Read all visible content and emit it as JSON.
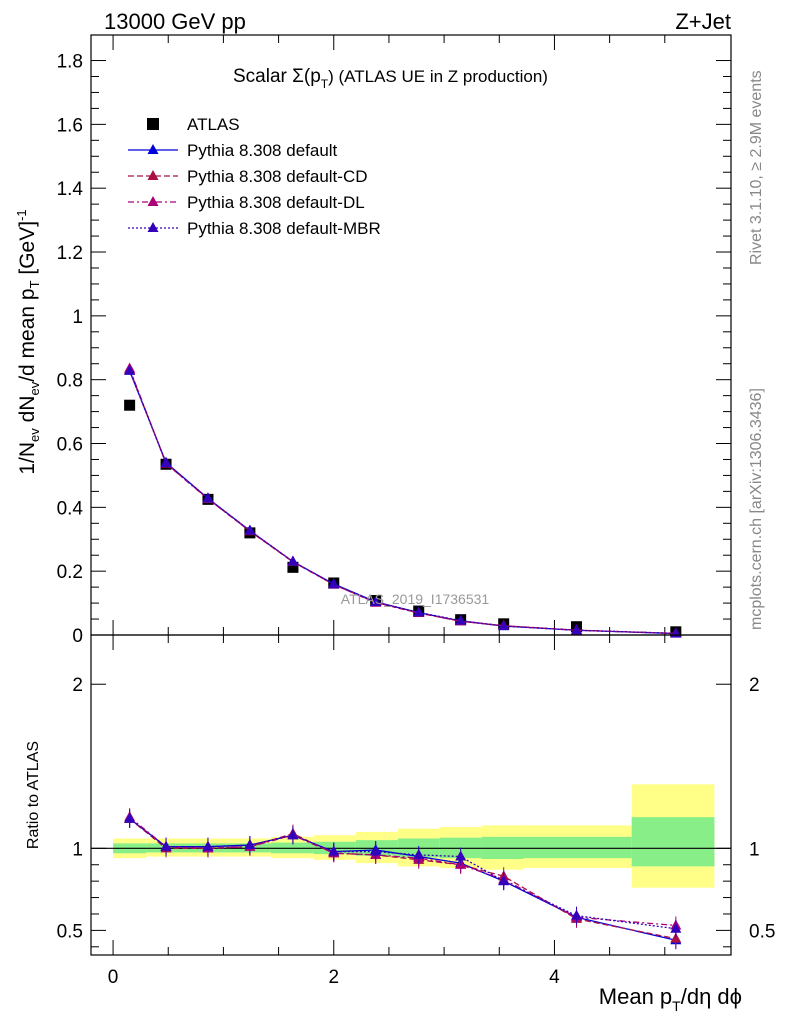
{
  "header": {
    "left": "13000 GeV pp",
    "right": "Z+Jet"
  },
  "plot_title": {
    "prefix": "Scalar Σ(p",
    "sub": "T",
    "suffix": ") (ATLAS UE in Z production)"
  },
  "side_text": {
    "rivet": "Rivet 3.1.10, ≥ 2.9M events",
    "mcplots": "mcplots.cern.ch [arXiv:1306.3436]"
  },
  "watermark": "ATLAS_2019_I1736531",
  "ylabel_main": {
    "a": "1/N",
    "a_sub": "ev",
    "b": " dN",
    "b_sub": "ev",
    "c": "/d mean p",
    "c_sub": "T",
    "d": " [GeV]",
    "d_sup": "-1"
  },
  "ylabel_ratio": "Ratio to ATLAS",
  "xlabel": {
    "a": "Mean p",
    "a_sub": "T",
    "b": "/dη dϕ"
  },
  "chart_data": [
    {
      "type": "scatter",
      "panel": "main",
      "ylim": [
        0,
        1.88
      ],
      "xlim": [
        -0.2,
        5.6
      ],
      "yticks": [
        "0",
        "0.2",
        "0.4",
        "0.6",
        "0.8",
        "1",
        "1.2",
        "1.4",
        "1.6",
        "1.8"
      ],
      "x": [
        0.15,
        0.48,
        0.86,
        1.24,
        1.63,
        2.0,
        2.38,
        2.77,
        3.15,
        3.54,
        4.2,
        5.1
      ],
      "series": [
        {
          "name": "ATLAS",
          "style": "marker-square",
          "color": "#000000",
          "values": [
            0.72,
            0.535,
            0.425,
            0.32,
            0.212,
            0.163,
            0.108,
            0.075,
            0.048,
            0.035,
            0.026,
            0.01
          ]
        },
        {
          "name": "Pythia 8.308 default",
          "style": "solid",
          "color": "#0000dd",
          "values": [
            0.828,
            0.54,
            0.428,
            0.327,
            0.23,
            0.16,
            0.104,
            0.07,
            0.044,
            0.028,
            0.015,
            0.0045
          ]
        },
        {
          "name": "Pythia 8.308 default-CD",
          "style": "dashed",
          "color": "#aa1144",
          "values": [
            0.832,
            0.538,
            0.427,
            0.325,
            0.229,
            0.158,
            0.102,
            0.069,
            0.043,
            0.029,
            0.015,
            0.005
          ]
        },
        {
          "name": "Pythia 8.308 default-DL",
          "style": "dashdot",
          "color": "#aa0077",
          "values": [
            0.835,
            0.537,
            0.426,
            0.326,
            0.23,
            0.158,
            0.101,
            0.069,
            0.043,
            0.029,
            0.015,
            0.005
          ]
        },
        {
          "name": "Pythia 8.308 default-MBR",
          "style": "dotted",
          "color": "#3300bb",
          "values": [
            0.828,
            0.539,
            0.428,
            0.327,
            0.23,
            0.159,
            0.103,
            0.071,
            0.045,
            0.028,
            0.015,
            0.005
          ]
        }
      ]
    },
    {
      "type": "line",
      "panel": "ratio",
      "ylim": [
        0.35,
        2.3
      ],
      "xlim": [
        -0.2,
        5.6
      ],
      "yticks": [
        "0.5",
        "1",
        "2"
      ],
      "xticks": [
        "0",
        "2",
        "4"
      ],
      "bins": [
        [
          0.0,
          0.3
        ],
        [
          0.3,
          0.67
        ],
        [
          0.67,
          1.05
        ],
        [
          1.05,
          1.43
        ],
        [
          1.43,
          1.82
        ],
        [
          1.82,
          2.2
        ],
        [
          2.2,
          2.58
        ],
        [
          2.58,
          2.96
        ],
        [
          2.96,
          3.34
        ],
        [
          3.34,
          3.72
        ],
        [
          3.72,
          4.7
        ],
        [
          4.7,
          5.45
        ]
      ],
      "band_yellow": [
        [
          0.94,
          1.06
        ],
        [
          0.95,
          1.06
        ],
        [
          0.95,
          1.06
        ],
        [
          0.95,
          1.06
        ],
        [
          0.94,
          1.07
        ],
        [
          0.93,
          1.08
        ],
        [
          0.91,
          1.1
        ],
        [
          0.89,
          1.12
        ],
        [
          0.88,
          1.13
        ],
        [
          0.87,
          1.14
        ],
        [
          0.88,
          1.14
        ],
        [
          0.76,
          1.39
        ]
      ],
      "band_green": [
        [
          0.97,
          1.03
        ],
        [
          0.975,
          1.03
        ],
        [
          0.975,
          1.03
        ],
        [
          0.975,
          1.03
        ],
        [
          0.97,
          1.035
        ],
        [
          0.965,
          1.04
        ],
        [
          0.955,
          1.05
        ],
        [
          0.945,
          1.06
        ],
        [
          0.94,
          1.065
        ],
        [
          0.935,
          1.07
        ],
        [
          0.94,
          1.07
        ],
        [
          0.89,
          1.19
        ]
      ],
      "x": [
        0.15,
        0.48,
        0.86,
        1.24,
        1.63,
        2.0,
        2.38,
        2.77,
        3.15,
        3.54,
        4.2,
        5.1
      ],
      "series": [
        {
          "name": "Pythia 8.308 default",
          "style": "solid",
          "color": "#0000dd",
          "values": [
            1.18,
            1.01,
            1.01,
            1.02,
            1.08,
            0.98,
            0.99,
            0.95,
            0.91,
            0.8,
            0.58,
            0.44
          ]
        },
        {
          "name": "Pythia 8.308 default-CD",
          "style": "dashed",
          "color": "#aa1144",
          "values": [
            1.18,
            1.0,
            1.0,
            1.01,
            1.09,
            0.97,
            0.96,
            0.93,
            0.9,
            0.83,
            0.57,
            0.45
          ]
        },
        {
          "name": "Pythia 8.308 default-DL",
          "style": "dashdot",
          "color": "#aa0077",
          "values": [
            1.19,
            1.01,
            1.0,
            1.01,
            1.08,
            0.97,
            0.96,
            0.94,
            0.9,
            0.81,
            0.58,
            0.53
          ]
        },
        {
          "name": "Pythia 8.308 default-MBR",
          "style": "dotted",
          "color": "#3300bb",
          "values": [
            1.18,
            1.01,
            1.01,
            1.02,
            1.08,
            0.98,
            0.98,
            0.96,
            0.95,
            0.8,
            0.59,
            0.51
          ]
        }
      ]
    }
  ]
}
